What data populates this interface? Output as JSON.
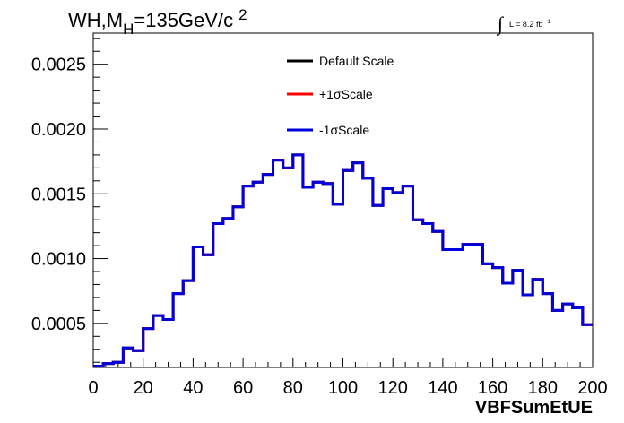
{
  "chart_data": {
    "type": "line",
    "title_main": "WH,M",
    "title_sub": "H",
    "title_rest": "=135GeV/c",
    "title_sup": "2",
    "lumi": {
      "integral": "∫",
      "text": "L = 8.2 fb",
      "sup": "-1"
    },
    "xlabel": "VBFSumEtUE",
    "ylabel": "",
    "xlim": [
      0,
      200
    ],
    "ylim": [
      0.00016,
      0.00274
    ],
    "x_ticks": [
      0,
      20,
      40,
      60,
      80,
      100,
      120,
      140,
      160,
      180,
      200
    ],
    "x_tick_labels": [
      "0",
      "20",
      "40",
      "60",
      "80",
      "100",
      "120",
      "140",
      "160",
      "180",
      "200"
    ],
    "y_ticks": [
      0.0005,
      0.001,
      0.0015,
      0.002,
      0.0025
    ],
    "y_tick_labels": [
      "0.0005",
      "0.0010",
      "0.0015",
      "0.0020",
      "0.0025"
    ],
    "grid": false,
    "legend_position": "top-center",
    "bin_edges": [
      0,
      4,
      8,
      12,
      16,
      20,
      24,
      28,
      32,
      36,
      40,
      44,
      48,
      52,
      56,
      60,
      64,
      68,
      72,
      76,
      80,
      84,
      88,
      92,
      96,
      100,
      104,
      108,
      112,
      116,
      120,
      124,
      128,
      132,
      136,
      140,
      144,
      148,
      152,
      156,
      160,
      164,
      168,
      172,
      176,
      180,
      184,
      188,
      192,
      196,
      200
    ],
    "series": [
      {
        "name": "Default Scale",
        "color": "#000000",
        "values": [
          0.00017,
          0.00019,
          0.0002,
          0.00031,
          0.00029,
          0.00046,
          0.00056,
          0.00053,
          0.00073,
          0.00083,
          0.00109,
          0.00103,
          0.00127,
          0.00131,
          0.0014,
          0.00156,
          0.00159,
          0.00165,
          0.00176,
          0.0017,
          0.0018,
          0.00155,
          0.00159,
          0.00158,
          0.00142,
          0.00168,
          0.00174,
          0.00162,
          0.00141,
          0.00154,
          0.00151,
          0.00156,
          0.0013,
          0.00127,
          0.00121,
          0.00107,
          0.00107,
          0.00111,
          0.00111,
          0.00096,
          0.00093,
          0.00081,
          0.00091,
          0.00072,
          0.00084,
          0.00073,
          0.0006,
          0.00065,
          0.00062,
          0.00049,
          0.00054
        ]
      },
      {
        "name": "+1σScale",
        "color": "#ff0000",
        "values": [
          0.00017,
          0.00019,
          0.0002,
          0.00031,
          0.00029,
          0.00046,
          0.00056,
          0.00053,
          0.00073,
          0.00083,
          0.00109,
          0.00103,
          0.00127,
          0.00131,
          0.0014,
          0.00156,
          0.00159,
          0.00165,
          0.00176,
          0.0017,
          0.0018,
          0.00155,
          0.00159,
          0.00158,
          0.00142,
          0.00168,
          0.00174,
          0.00162,
          0.00141,
          0.00154,
          0.00151,
          0.00156,
          0.0013,
          0.00127,
          0.00121,
          0.00107,
          0.00107,
          0.00111,
          0.00111,
          0.00096,
          0.00093,
          0.00081,
          0.00091,
          0.00072,
          0.00084,
          0.00073,
          0.0006,
          0.00065,
          0.00062,
          0.00049,
          0.00054
        ]
      },
      {
        "name": "-1σScale",
        "color": "#0000dd",
        "values": [
          0.00017,
          0.00019,
          0.0002,
          0.00031,
          0.00029,
          0.00046,
          0.00056,
          0.00053,
          0.00073,
          0.00083,
          0.00109,
          0.00103,
          0.00127,
          0.00131,
          0.0014,
          0.00156,
          0.00159,
          0.00165,
          0.00176,
          0.0017,
          0.0018,
          0.00155,
          0.00159,
          0.00158,
          0.00142,
          0.00168,
          0.00174,
          0.00162,
          0.00141,
          0.00154,
          0.00151,
          0.00156,
          0.0013,
          0.00127,
          0.00121,
          0.00107,
          0.00107,
          0.00111,
          0.00111,
          0.00096,
          0.00093,
          0.00081,
          0.00091,
          0.00072,
          0.00084,
          0.00073,
          0.0006,
          0.00065,
          0.00062,
          0.00049,
          0.00054
        ]
      }
    ]
  }
}
